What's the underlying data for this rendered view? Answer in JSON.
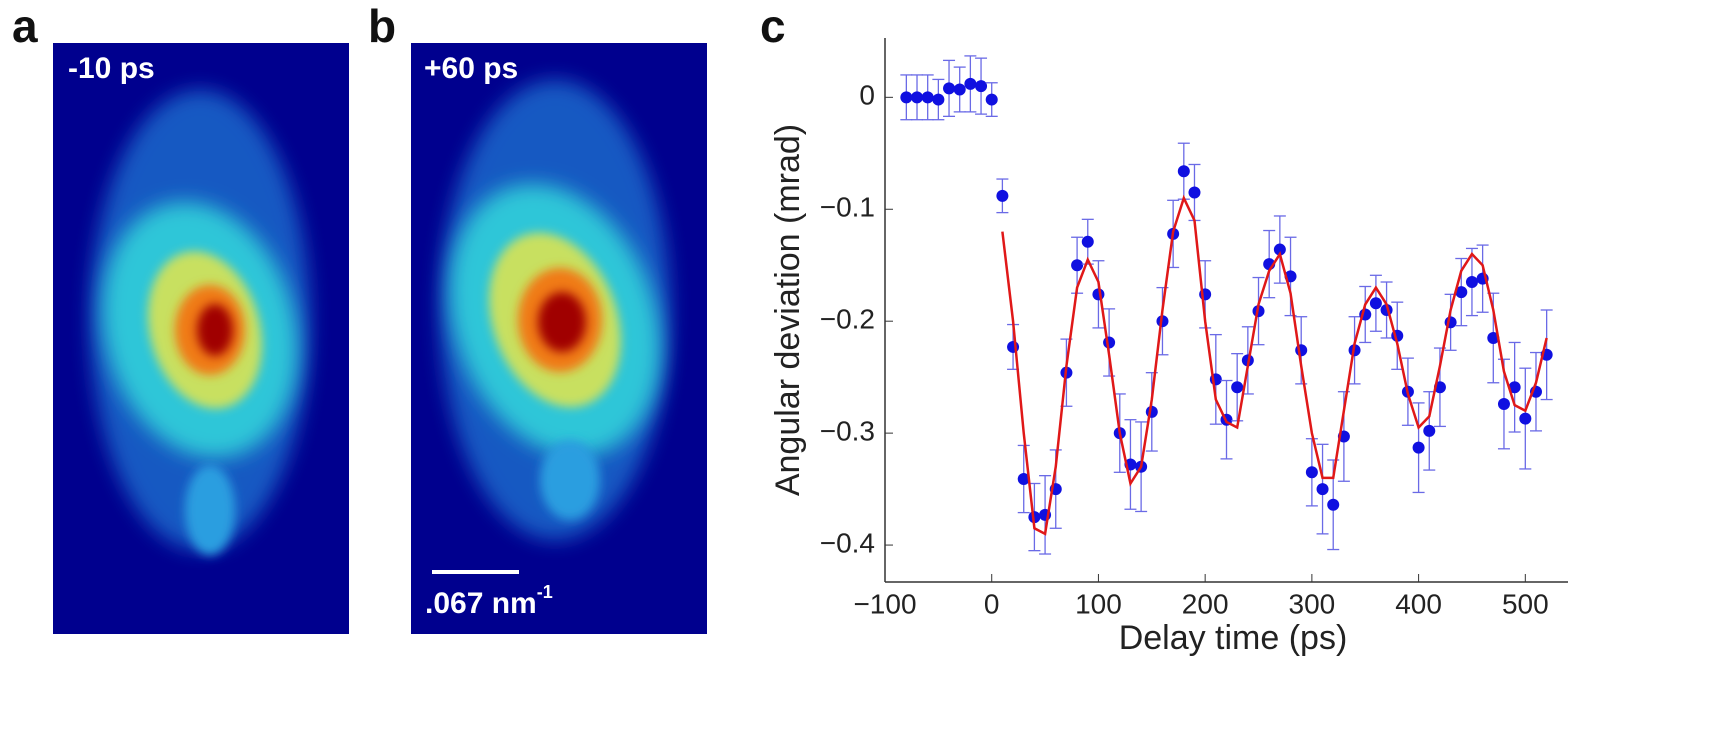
{
  "panels": [
    {
      "label": "a",
      "caption": "-10 ps"
    },
    {
      "label": "b",
      "caption": "+60 ps"
    }
  ],
  "scale_bar": {
    "text": ".067 nm",
    "exponent": "-1"
  },
  "chart_data": {
    "type": "scatter",
    "panel_label": "c",
    "x_label": "Delay time (ps)",
    "y_label": "Angular deviation (mrad)",
    "xlim": [
      -100,
      540
    ],
    "ylim": [
      -0.433,
      0.053
    ],
    "xticks": [
      {
        "value": -100,
        "label": "−100"
      },
      0,
      100,
      200,
      300,
      400,
      500
    ],
    "yticks": [
      0,
      {
        "value": -0.1,
        "label": "−0.1"
      },
      {
        "value": -0.2,
        "label": "−0.2"
      },
      {
        "value": -0.3,
        "label": "−0.3"
      },
      {
        "value": -0.4,
        "label": "−0.4"
      }
    ],
    "series": [
      {
        "type": "scatter",
        "color": "#1010e0",
        "errcolor": "#6a6ae6",
        "x": [
          -80,
          -70,
          -60,
          -50,
          -40,
          -30,
          -20,
          -10,
          0,
          10,
          20,
          30,
          40,
          50,
          60,
          70,
          80,
          90,
          100,
          110,
          120,
          130,
          140,
          150,
          160,
          170,
          180,
          190,
          200,
          210,
          220,
          230,
          240,
          250,
          260,
          270,
          280,
          290,
          300,
          310,
          320,
          330,
          340,
          350,
          360,
          370,
          380,
          390,
          400,
          410,
          420,
          430,
          440,
          450,
          460,
          470,
          480,
          490,
          500,
          510,
          520
        ],
        "values": [
          0,
          0,
          0,
          -0.002,
          0.008,
          0.007,
          0.012,
          0.01,
          -0.002,
          -0.088,
          -0.223,
          -0.341,
          -0.375,
          -0.373,
          -0.35,
          -0.246,
          -0.15,
          -0.129,
          -0.176,
          -0.219,
          -0.3,
          -0.328,
          -0.33,
          -0.281,
          -0.2,
          -0.122,
          -0.066,
          -0.085,
          -0.176,
          -0.252,
          -0.288,
          -0.259,
          -0.235,
          -0.191,
          -0.149,
          -0.136,
          -0.16,
          -0.226,
          -0.335,
          -0.35,
          -0.364,
          -0.303,
          -0.226,
          -0.194,
          -0.184,
          -0.19,
          -0.213,
          -0.263,
          -0.313,
          -0.298,
          -0.259,
          -0.201,
          -0.174,
          -0.165,
          -0.162,
          -0.215,
          -0.274,
          -0.259,
          -0.287,
          -0.263,
          -0.23
        ],
        "errors": [
          0.02,
          0.02,
          0.02,
          0.018,
          0.025,
          0.02,
          0.025,
          0.025,
          0.015,
          0.015,
          0.02,
          0.03,
          0.03,
          0.035,
          0.035,
          0.03,
          0.025,
          0.02,
          0.03,
          0.03,
          0.035,
          0.04,
          0.04,
          0.035,
          0.03,
          0.03,
          0.025,
          0.025,
          0.03,
          0.04,
          0.035,
          0.03,
          0.03,
          0.03,
          0.03,
          0.03,
          0.035,
          0.03,
          0.03,
          0.04,
          0.04,
          0.04,
          0.03,
          0.025,
          0.025,
          0.025,
          0.03,
          0.03,
          0.04,
          0.035,
          0.035,
          0.025,
          0.03,
          0.03,
          0.03,
          0.04,
          0.04,
          0.04,
          0.045,
          0.035,
          0.04
        ]
      },
      {
        "type": "line",
        "color": "#e01818",
        "x": [
          10,
          20,
          30,
          40,
          50,
          60,
          70,
          80,
          90,
          100,
          110,
          120,
          130,
          140,
          150,
          160,
          170,
          180,
          190,
          200,
          210,
          220,
          230,
          240,
          250,
          260,
          270,
          280,
          290,
          300,
          310,
          320,
          330,
          340,
          350,
          360,
          370,
          380,
          390,
          400,
          410,
          420,
          430,
          440,
          450,
          460,
          470,
          480,
          490,
          500,
          510,
          520
        ],
        "values": [
          -0.12,
          -0.2,
          -0.3,
          -0.385,
          -0.39,
          -0.33,
          -0.24,
          -0.17,
          -0.145,
          -0.165,
          -0.23,
          -0.3,
          -0.345,
          -0.33,
          -0.27,
          -0.19,
          -0.12,
          -0.09,
          -0.11,
          -0.2,
          -0.27,
          -0.29,
          -0.295,
          -0.24,
          -0.185,
          -0.155,
          -0.14,
          -0.175,
          -0.24,
          -0.3,
          -0.34,
          -0.34,
          -0.28,
          -0.22,
          -0.185,
          -0.17,
          -0.185,
          -0.22,
          -0.265,
          -0.295,
          -0.285,
          -0.24,
          -0.19,
          -0.155,
          -0.14,
          -0.15,
          -0.19,
          -0.245,
          -0.275,
          -0.28,
          -0.255,
          -0.215
        ]
      }
    ]
  }
}
